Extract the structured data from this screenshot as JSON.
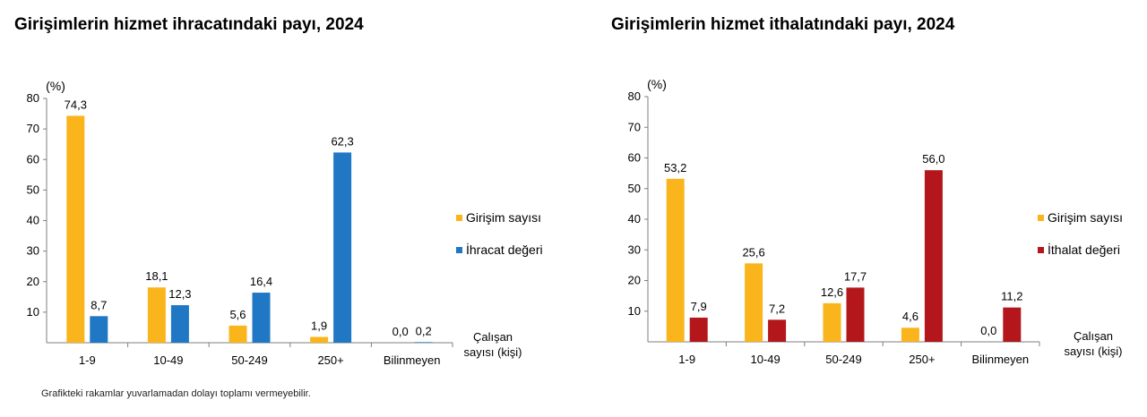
{
  "footnote": "Grafikteki rakamlar yuvarlamadan dolayı toplamı vermeyebilir.",
  "chart_data": [
    {
      "type": "bar",
      "title": "Girişimlerin hizmet ihracatındaki payı, 2024",
      "ylabel": "(%)",
      "xlabel": [
        "Çalışan",
        "sayısı (kişi)"
      ],
      "ylim": [
        0,
        80
      ],
      "yticks": [
        10,
        20,
        30,
        40,
        50,
        60,
        70,
        80
      ],
      "categories": [
        "1-9",
        "10-49",
        "50-249",
        "250+",
        "Bilinmeyen"
      ],
      "series": [
        {
          "name": "Girişim sayısı",
          "color": "#F9B51B",
          "values": [
            74.3,
            18.1,
            5.6,
            1.9,
            0.0
          ],
          "labels": [
            "74,3",
            "18,1",
            "5,6",
            "1,9",
            "0,0"
          ]
        },
        {
          "name": "İhracat değeri",
          "color": "#2078C4",
          "values": [
            8.7,
            12.3,
            16.4,
            62.3,
            0.2
          ],
          "labels": [
            "8,7",
            "12,3",
            "16,4",
            "62,3",
            "0,2"
          ]
        }
      ],
      "grid": false,
      "legend": "right"
    },
    {
      "type": "bar",
      "title": "Girişimlerin hizmet ithalatındaki payı, 2024",
      "ylabel": "(%)",
      "xlabel": [
        "Çalışan",
        "sayısı (kişi)"
      ],
      "ylim": [
        0,
        80
      ],
      "yticks": [
        10,
        20,
        30,
        40,
        50,
        60,
        70,
        80
      ],
      "categories": [
        "1-9",
        "10-49",
        "50-249",
        "250+",
        "Bilinmeyen"
      ],
      "series": [
        {
          "name": "Girişim sayısı",
          "color": "#F9B51B",
          "values": [
            53.2,
            25.6,
            12.6,
            4.6,
            0.0
          ],
          "labels": [
            "53,2",
            "25,6",
            "12,6",
            "4,6",
            "0,0"
          ]
        },
        {
          "name": "İthalat değeri",
          "color": "#B3161B",
          "values": [
            7.9,
            7.2,
            17.7,
            56.0,
            11.2
          ],
          "labels": [
            "7,9",
            "7,2",
            "17,7",
            "56,0",
            "11,2"
          ]
        }
      ],
      "grid": false,
      "legend": "right"
    }
  ]
}
